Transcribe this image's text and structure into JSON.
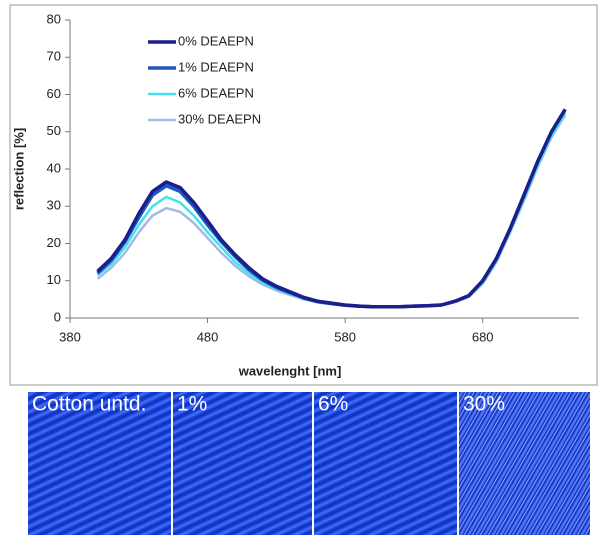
{
  "chart_data": {
    "type": "line",
    "x": [
      400,
      410,
      420,
      430,
      440,
      450,
      460,
      470,
      480,
      490,
      500,
      510,
      520,
      530,
      540,
      550,
      560,
      570,
      580,
      590,
      600,
      610,
      620,
      630,
      640,
      650,
      660,
      670,
      680,
      690,
      700,
      710,
      720,
      730,
      740
    ],
    "series": [
      {
        "name": "0% DEAEPN",
        "color": "#1b1f8a",
        "values": [
          12.5,
          16,
          21,
          28,
          34,
          36.5,
          35,
          31,
          26,
          21,
          17,
          13.5,
          10.5,
          8.5,
          7,
          5.5,
          4.5,
          4,
          3.5,
          3.2,
          3,
          3,
          3,
          3.2,
          3.3,
          3.5,
          4.5,
          6,
          10,
          16,
          24,
          33,
          42,
          50,
          56
        ]
      },
      {
        "name": "1% DEAEPN",
        "color": "#1f55c4",
        "values": [
          12,
          15.5,
          20.5,
          27,
          33,
          35.5,
          34,
          30,
          25,
          20.5,
          16.5,
          13,
          10.2,
          8.2,
          6.8,
          5.4,
          4.4,
          3.9,
          3.4,
          3.2,
          3,
          3,
          3,
          3.2,
          3.3,
          3.5,
          4.5,
          6,
          10,
          16,
          24,
          33,
          42,
          50,
          56
        ]
      },
      {
        "name": "6% DEAEPN",
        "color": "#3fe3ec",
        "values": [
          11.5,
          14.5,
          19,
          25,
          30,
          32.5,
          31,
          27.5,
          23,
          19,
          15,
          12,
          9.5,
          7.8,
          6.4,
          5.2,
          4.3,
          3.8,
          3.4,
          3.1,
          3,
          3,
          3,
          3.2,
          3.3,
          3.5,
          4.4,
          5.8,
          9.5,
          15.5,
          23.5,
          32,
          41,
          49,
          55
        ]
      },
      {
        "name": "30% DEAEPN",
        "color": "#a3b9e6",
        "values": [
          10.5,
          13.5,
          17.5,
          23,
          27.5,
          29.5,
          28.5,
          25.5,
          21.5,
          17.5,
          14,
          11.2,
          9,
          7.4,
          6.2,
          5,
          4.2,
          3.7,
          3.3,
          3.1,
          3,
          3,
          3,
          3.1,
          3.2,
          3.4,
          4.3,
          5.7,
          9.2,
          15,
          23,
          31.5,
          40.5,
          48.5,
          54.5
        ]
      }
    ],
    "x_label": "wavelenght [nm]",
    "y_label": "reflection [%]",
    "xlim": [
      380,
      750
    ],
    "xticks": [
      380,
      480,
      580,
      680
    ],
    "ylim": [
      0,
      80
    ],
    "yticks": [
      0,
      10,
      20,
      30,
      40,
      50,
      60,
      70,
      80
    ],
    "legend": "upper-left"
  },
  "swatches": [
    "Cotton untd.",
    "1%",
    "6%",
    "30%"
  ]
}
